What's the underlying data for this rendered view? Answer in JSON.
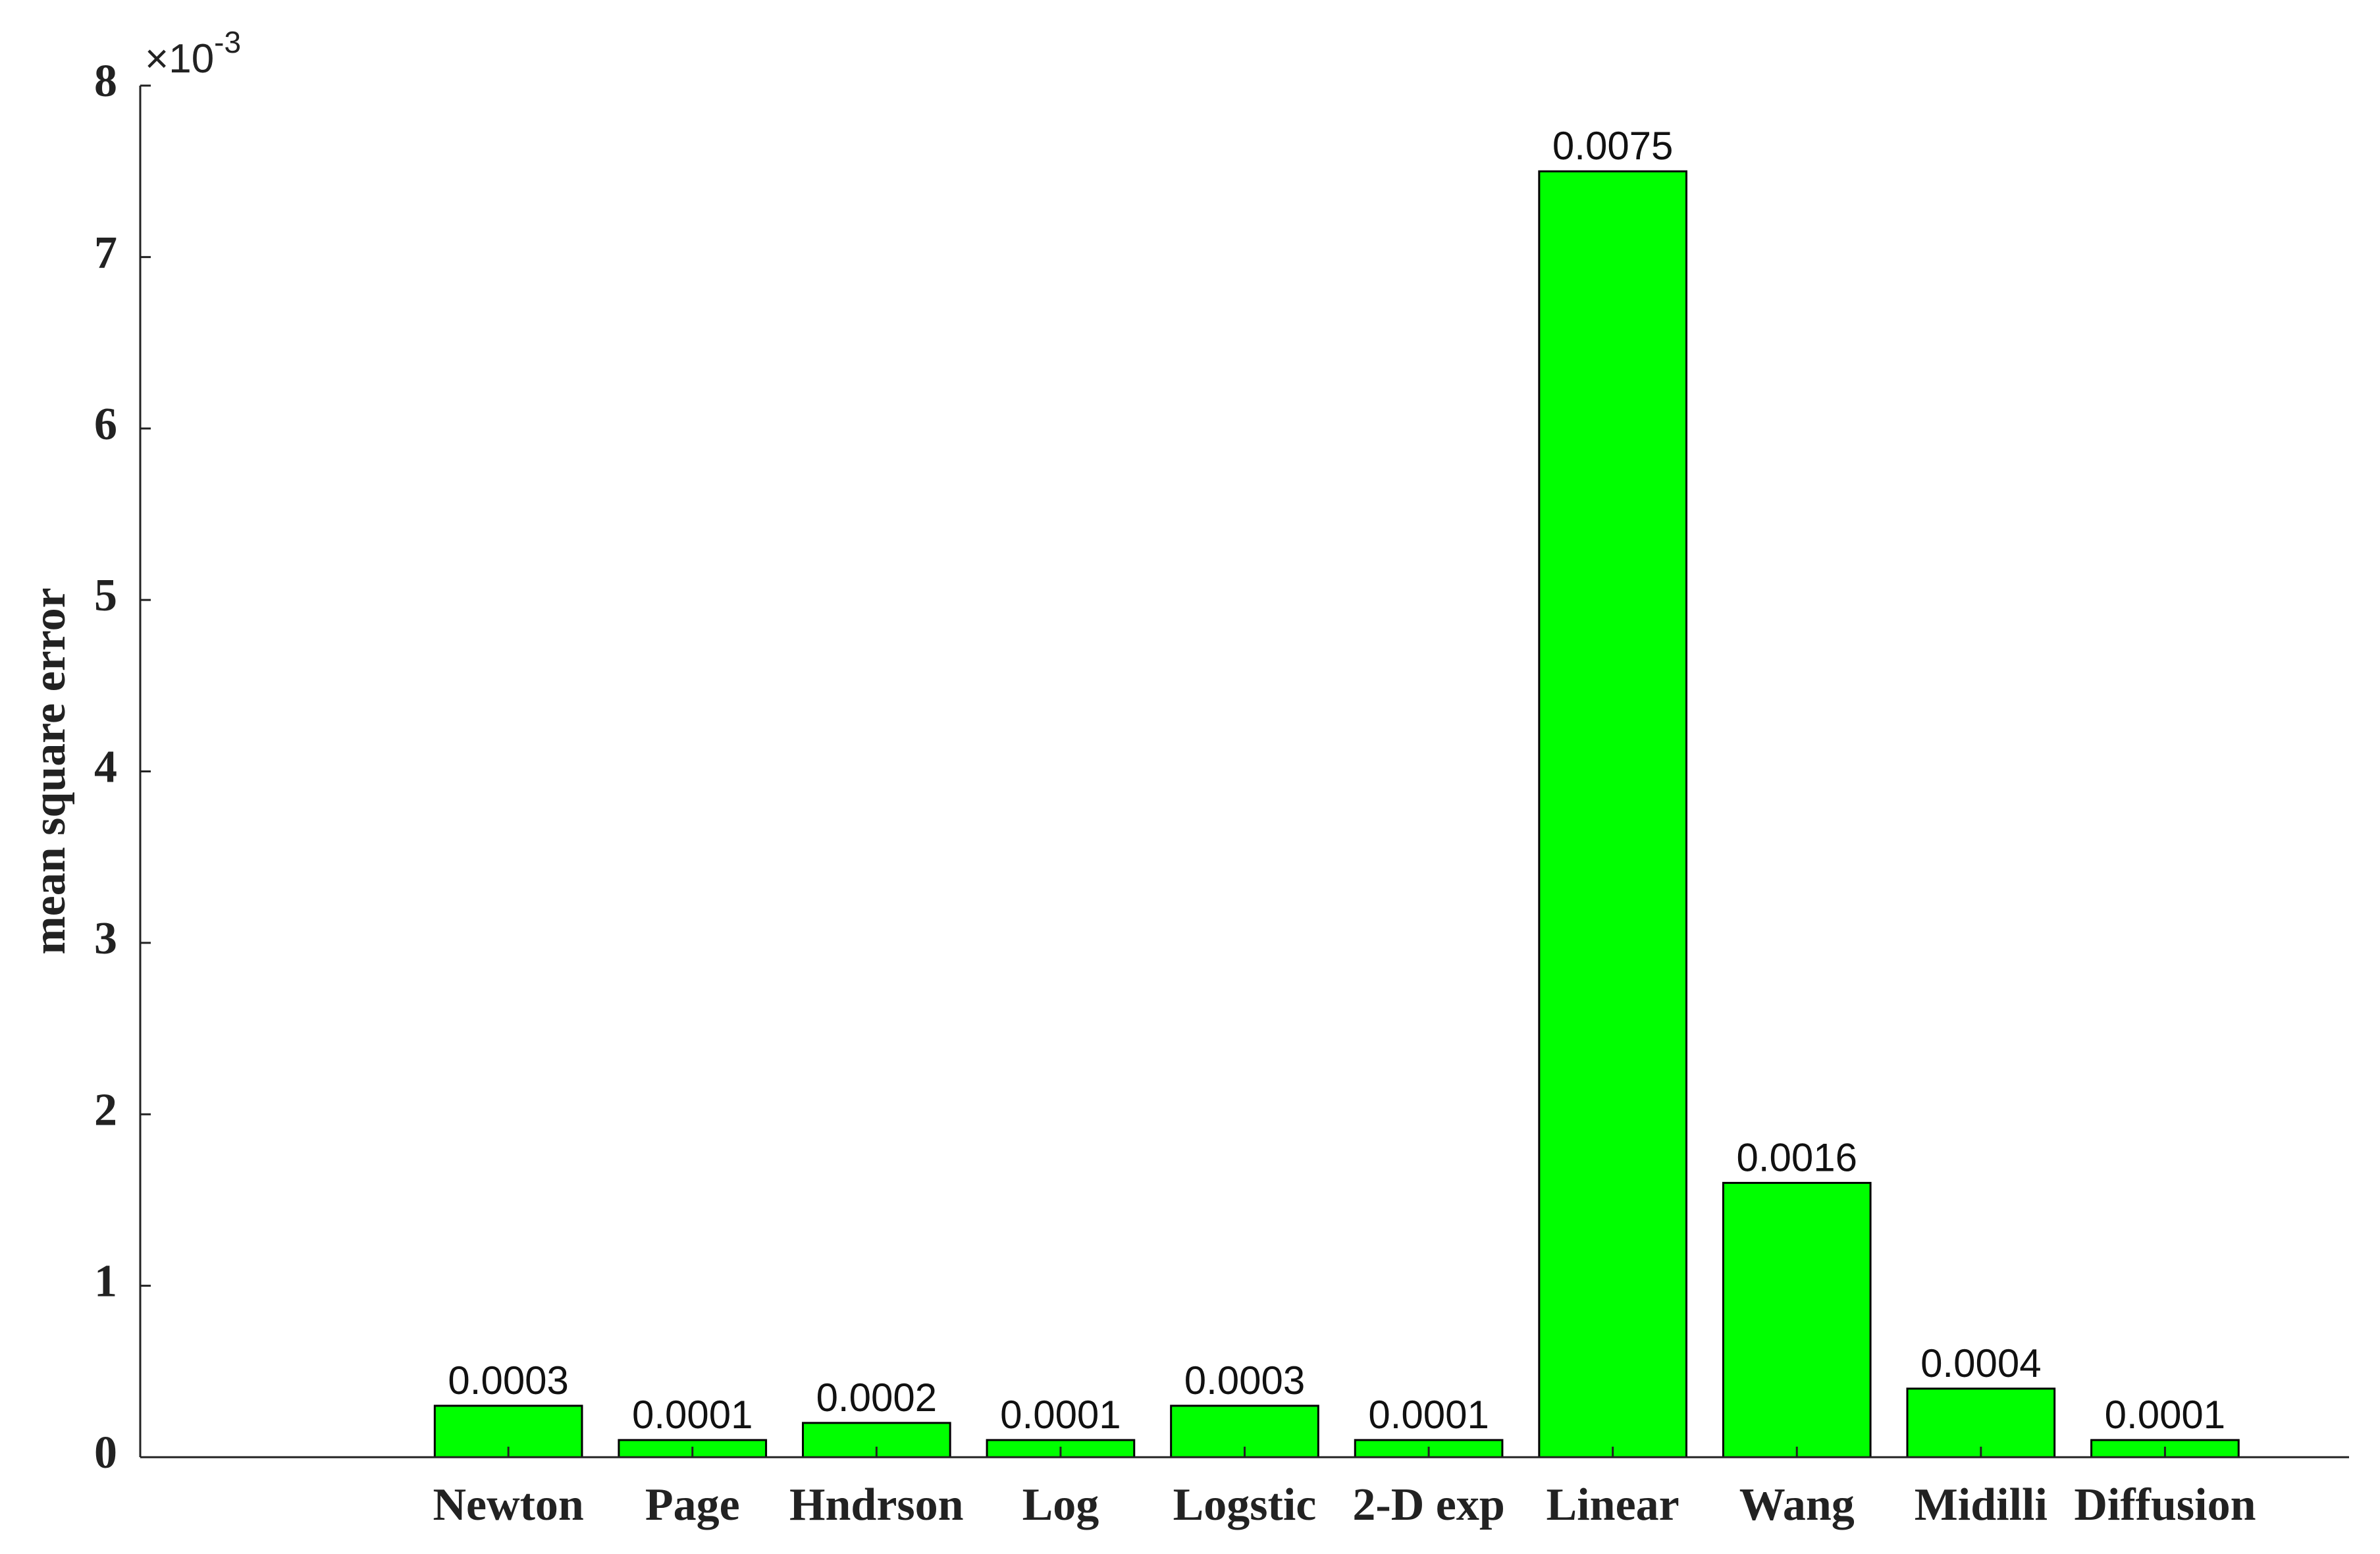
{
  "chart_data": {
    "type": "bar",
    "y_label": "mean square error",
    "y_multiplier": {
      "base": "×10",
      "exponent": "-3"
    },
    "categories": [
      "Newton",
      "Page",
      "Hndrson",
      "Log",
      "Logstic",
      "2-D exp",
      "Linear",
      "Wang",
      "Midilli",
      "Diffusion"
    ],
    "x": [
      2,
      3,
      4,
      5,
      6,
      7,
      8,
      9,
      10,
      11
    ],
    "xlim": [
      0,
      12
    ],
    "values": [
      0.3,
      0.1,
      0.2,
      0.1,
      0.3,
      0.1,
      7.5,
      1.6,
      0.4,
      0.1
    ],
    "value_labels": [
      "0.0003",
      "0.0001",
      "0.0002",
      "0.0001",
      "0.0003",
      "0.0001",
      "0.0075",
      "0.0016",
      "0.0004",
      "0.0001"
    ],
    "color": "#00ff00",
    "ylim": [
      0,
      8
    ],
    "yticks": [
      0,
      1,
      2,
      3,
      4,
      5,
      6,
      7,
      8
    ],
    "grid": false
  }
}
